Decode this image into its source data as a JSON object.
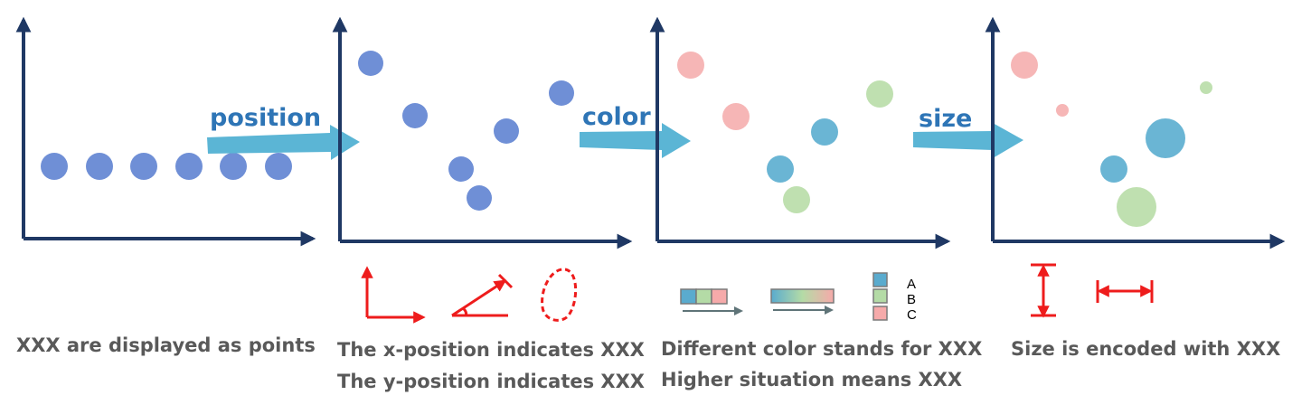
{
  "colors": {
    "axis": "#1f3864",
    "point_blue": "#6f8fd6",
    "arrow": "#5bb5d5",
    "arrow_text": "#2e75b6",
    "red": "#ee1c1c",
    "caption": "#595959",
    "cat_a": "#5aabce",
    "cat_b": "#b4dba6",
    "cat_c": "#f6aaaa",
    "gray_arrow": "#5f7478"
  },
  "transitions": {
    "position": "position",
    "color": "color",
    "size": "size"
  },
  "captions": {
    "points": "XXX are displayed as points",
    "x_position": "The x-position indicates XXX",
    "y_position": "The y-position indicates XXX",
    "color_diff": "Different color stands for XXX",
    "color_high": "Higher situation means XXX",
    "size": "Size is encoded with XXX"
  },
  "legend": {
    "categories": [
      "A",
      "B",
      "C"
    ]
  }
}
